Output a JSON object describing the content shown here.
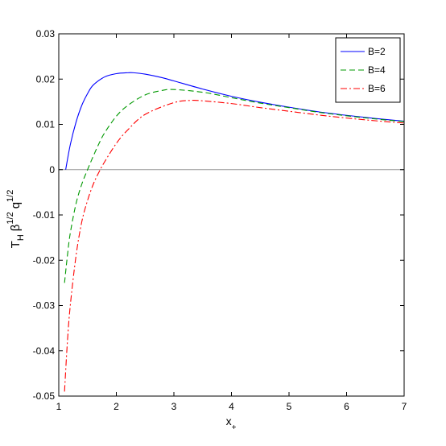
{
  "chart_data": {
    "type": "line",
    "title": "",
    "xlabel": {
      "main": "x",
      "sub": "+"
    },
    "ylabel": {
      "t": "T",
      "t_sub": "H",
      "beta": "β",
      "beta_sup": "1/2",
      "q": "q",
      "q_sup": "1/2"
    },
    "xlim": [
      1,
      7
    ],
    "ylim": [
      -0.05,
      0.03
    ],
    "xticks": [
      1,
      2,
      3,
      4,
      5,
      6,
      7
    ],
    "xtick_labels": [
      "1",
      "2",
      "3",
      "4",
      "5",
      "6",
      "7"
    ],
    "yticks": [
      -0.05,
      -0.04,
      -0.03,
      -0.02,
      -0.01,
      0,
      0.01,
      0.02,
      0.03
    ],
    "ytick_labels": [
      "-0.05",
      "-0.04",
      "-0.03",
      "-0.02",
      "-0.01",
      "0",
      "0.01",
      "0.02",
      "0.03"
    ],
    "grid": false,
    "legend_position": "top-right",
    "reference_line": {
      "y": 0,
      "color": "#999999"
    },
    "series": [
      {
        "name": "B=2",
        "color": "#0000ff",
        "style": "solid",
        "x": [
          1.12,
          1.2,
          1.3,
          1.4,
          1.5,
          1.6,
          1.8,
          2.0,
          2.2,
          2.3,
          2.5,
          2.8,
          3.0,
          3.5,
          4.0,
          4.5,
          5.0,
          5.5,
          6.0,
          6.5,
          7.0
        ],
        "y": [
          0.0,
          0.0055,
          0.0105,
          0.0142,
          0.0168,
          0.0187,
          0.0205,
          0.0212,
          0.0214,
          0.0214,
          0.0211,
          0.0203,
          0.0196,
          0.0178,
          0.0162,
          0.0149,
          0.0138,
          0.0128,
          0.012,
          0.0113,
          0.0107
        ]
      },
      {
        "name": "B=4",
        "color": "#009900",
        "style": "dashed",
        "x": [
          1.1,
          1.15,
          1.2,
          1.3,
          1.4,
          1.5,
          1.6,
          1.7,
          1.8,
          2.0,
          2.2,
          2.5,
          2.8,
          3.0,
          3.5,
          4.0,
          4.5,
          5.0,
          5.5,
          6.0,
          6.5,
          7.0
        ],
        "y": [
          -0.025,
          -0.019,
          -0.014,
          -0.0075,
          -0.0032,
          0.0,
          0.003,
          0.0058,
          0.0082,
          0.0118,
          0.0142,
          0.0165,
          0.0175,
          0.0177,
          0.0171,
          0.0159,
          0.0147,
          0.0137,
          0.0127,
          0.0119,
          0.0112,
          0.0106
        ]
      },
      {
        "name": "B=6",
        "color": "#ff0000",
        "style": "dashdot",
        "x": [
          1.1,
          1.15,
          1.2,
          1.3,
          1.4,
          1.5,
          1.6,
          1.7,
          1.8,
          2.0,
          2.2,
          2.5,
          3.0,
          3.3,
          3.5,
          4.0,
          4.5,
          5.0,
          5.5,
          6.0,
          6.5,
          7.0
        ],
        "y": [
          -0.049,
          -0.038,
          -0.03,
          -0.019,
          -0.0115,
          -0.0068,
          -0.0032,
          -0.0005,
          0.0018,
          0.0058,
          0.0088,
          0.0122,
          0.0148,
          0.0153,
          0.0152,
          0.0146,
          0.0137,
          0.0129,
          0.0121,
          0.0114,
          0.0108,
          0.0103
        ]
      }
    ]
  }
}
